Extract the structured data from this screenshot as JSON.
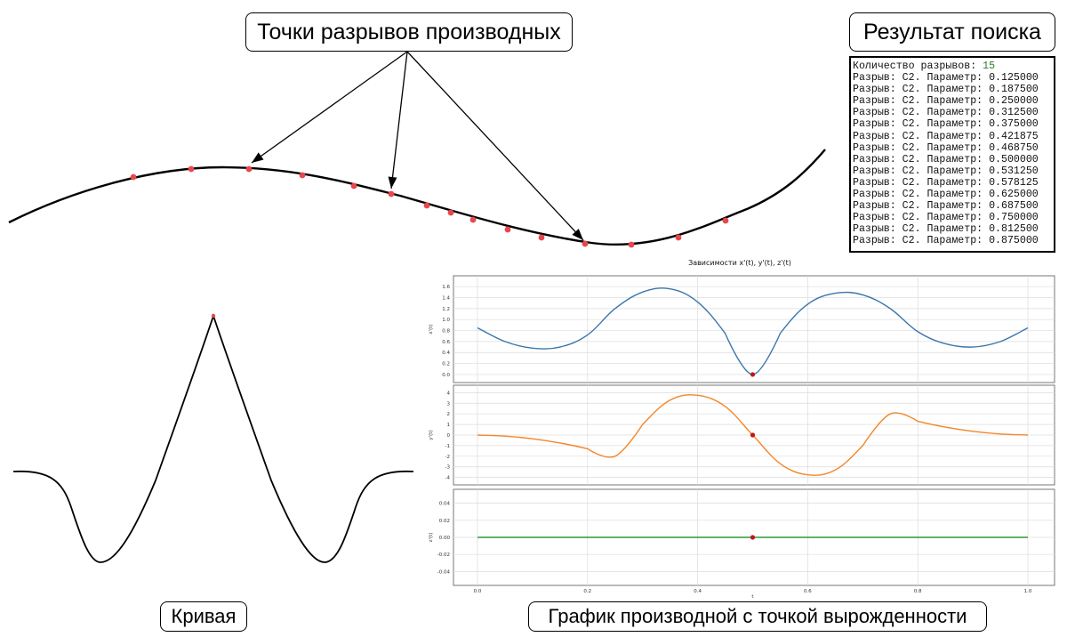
{
  "labels": {
    "breaks": "Точки разрывов производных",
    "result": "Результат поиска",
    "curve": "Кривая",
    "derivative": "График производной с точкой вырожденности"
  },
  "result_panel": {
    "header_text": "Количество разрывов:",
    "count": "15",
    "row_prefix": "Разрыв: C2. Параметр:",
    "params": [
      "0.125000",
      "0.187500",
      "0.250000",
      "0.312500",
      "0.375000",
      "0.421875",
      "0.468750",
      "0.500000",
      "0.531250",
      "0.578125",
      "0.625000",
      "0.687500",
      "0.750000",
      "0.812500",
      "0.875000"
    ]
  },
  "colors": {
    "curve": "#000000",
    "break_point": "#e8474c",
    "x_series": "#3b77ab",
    "y_series": "#f2862a",
    "z_series": "#2e9a3a",
    "degenerate_point": "#c41414"
  },
  "chart_data": [
    {
      "type": "line",
      "title": "",
      "series": [
        {
          "values": []
        }
      ]
    },
    {
      "type": "line",
      "title": "",
      "series": [
        {
          "values": []
        }
      ]
    },
    {
      "type": "line",
      "title": "Зависимости x'(t), y'(t), z'(t)",
      "subplots": [
        {
          "ylabel": "x'(t)",
          "ylim": [
            -0.05,
            1.7
          ],
          "yticks": [
            "0.0",
            "0.2",
            "0.4",
            "0.6",
            "0.8",
            "1.0",
            "1.2",
            "1.4",
            "1.6"
          ],
          "x": [
            0.0,
            0.05,
            0.1,
            0.15,
            0.2,
            0.25,
            0.3,
            0.35,
            0.4,
            0.45,
            0.5,
            0.55,
            0.6,
            0.65,
            0.7,
            0.75,
            0.8,
            0.85,
            0.9,
            0.95,
            1.0
          ],
          "values": [
            0.85,
            0.6,
            0.48,
            0.5,
            0.72,
            1.2,
            1.5,
            1.56,
            1.32,
            0.75,
            0.0,
            0.75,
            1.28,
            1.48,
            1.45,
            1.2,
            0.78,
            0.56,
            0.5,
            0.6,
            0.85
          ],
          "marker": {
            "x": 0.5,
            "y": 0.0
          },
          "grid": true
        },
        {
          "ylabel": "y'(t)",
          "ylim": [
            -4.2,
            4.2
          ],
          "yticks": [
            "4",
            "3",
            "2",
            "1",
            "0",
            "-1",
            "-2",
            "-3",
            "-4"
          ],
          "x": [
            0.0,
            0.05,
            0.1,
            0.15,
            0.2,
            0.25,
            0.3,
            0.35,
            0.4,
            0.45,
            0.5,
            0.55,
            0.6,
            0.65,
            0.7,
            0.75,
            0.8,
            0.85,
            0.9,
            0.95,
            1.0
          ],
          "values": [
            0.0,
            -0.1,
            -0.35,
            -0.75,
            -1.3,
            -2.0,
            1.0,
            3.3,
            3.75,
            2.7,
            0.0,
            -2.7,
            -3.75,
            -3.3,
            -1.0,
            2.0,
            1.3,
            0.75,
            0.35,
            0.1,
            0.0
          ],
          "marker": {
            "x": 0.5,
            "y": 0.0
          },
          "grid": true
        },
        {
          "ylabel": "z'(t)",
          "xlabel": "t",
          "ylim": [
            -0.05,
            0.05
          ],
          "yticks": [
            "0.04",
            "0.02",
            "0.00",
            "-0.02",
            "-0.04"
          ],
          "xticks": [
            "0.0",
            "0.2",
            "0.4",
            "0.6",
            "0.8",
            "1.0"
          ],
          "x": [
            0.0,
            1.0
          ],
          "values": [
            0.0,
            0.0
          ],
          "marker": {
            "x": 0.5,
            "y": 0.0
          },
          "grid": true
        }
      ]
    }
  ]
}
